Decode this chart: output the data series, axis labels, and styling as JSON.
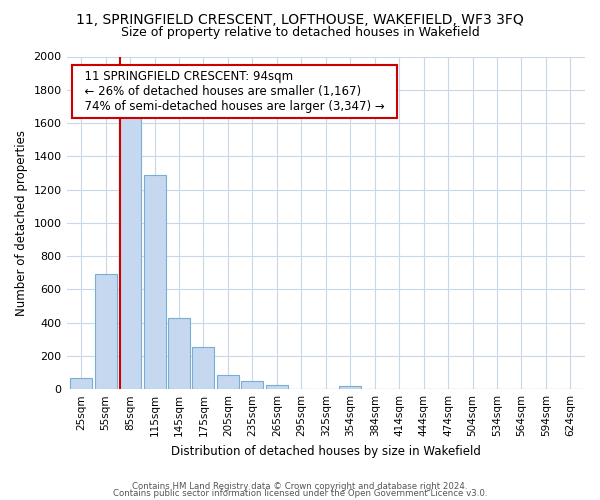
{
  "title_line1": "11, SPRINGFIELD CRESCENT, LOFTHOUSE, WAKEFIELD, WF3 3FQ",
  "title_line2": "Size of property relative to detached houses in Wakefield",
  "xlabel": "Distribution of detached houses by size in Wakefield",
  "ylabel": "Number of detached properties",
  "bar_labels": [
    "25sqm",
    "55sqm",
    "85sqm",
    "115sqm",
    "145sqm",
    "175sqm",
    "205sqm",
    "235sqm",
    "265sqm",
    "295sqm",
    "325sqm",
    "354sqm",
    "384sqm",
    "414sqm",
    "444sqm",
    "474sqm",
    "504sqm",
    "534sqm",
    "564sqm",
    "594sqm",
    "624sqm"
  ],
  "bar_heights": [
    65,
    690,
    1640,
    1285,
    430,
    255,
    88,
    52,
    28,
    0,
    0,
    18,
    0,
    0,
    0,
    0,
    0,
    0,
    0,
    0,
    0
  ],
  "bar_color": "#c5d8f0",
  "bar_edge_color": "#7aadd4",
  "vline_color": "#cc0000",
  "vline_x_index": 2,
  "annotation_title": "11 SPRINGFIELD CRESCENT: 94sqm",
  "annotation_line2": "← 26% of detached houses are smaller (1,167)",
  "annotation_line3": "74% of semi-detached houses are larger (3,347) →",
  "ylim": [
    0,
    2000
  ],
  "yticks": [
    0,
    200,
    400,
    600,
    800,
    1000,
    1200,
    1400,
    1600,
    1800,
    2000
  ],
  "footer_line1": "Contains HM Land Registry data © Crown copyright and database right 2024.",
  "footer_line2": "Contains public sector information licensed under the Open Government Licence v3.0.",
  "background_color": "#ffffff",
  "grid_color": "#c8d8e8"
}
